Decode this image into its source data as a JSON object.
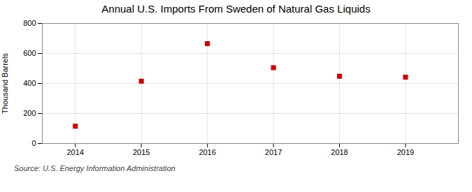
{
  "chart_data": {
    "type": "scatter",
    "title": "Annual U.S. Imports From Sweden of Natural Gas Liquids",
    "ylabel": "Thousand Barrels",
    "annotation": "Source: U.S. Energy Information Administration",
    "x": [
      2014,
      2015,
      2016,
      2017,
      2018,
      2019
    ],
    "values": [
      115,
      415,
      665,
      505,
      448,
      442
    ],
    "color": "#cc0000",
    "marker": "square",
    "xlim": [
      2013.5,
      2019.8
    ],
    "xticks": [
      2014,
      2015,
      2016,
      2017,
      2018,
      2019
    ],
    "ylim": [
      0,
      800
    ],
    "yticks": [
      0,
      200,
      400,
      600,
      800
    ],
    "grid": true
  }
}
